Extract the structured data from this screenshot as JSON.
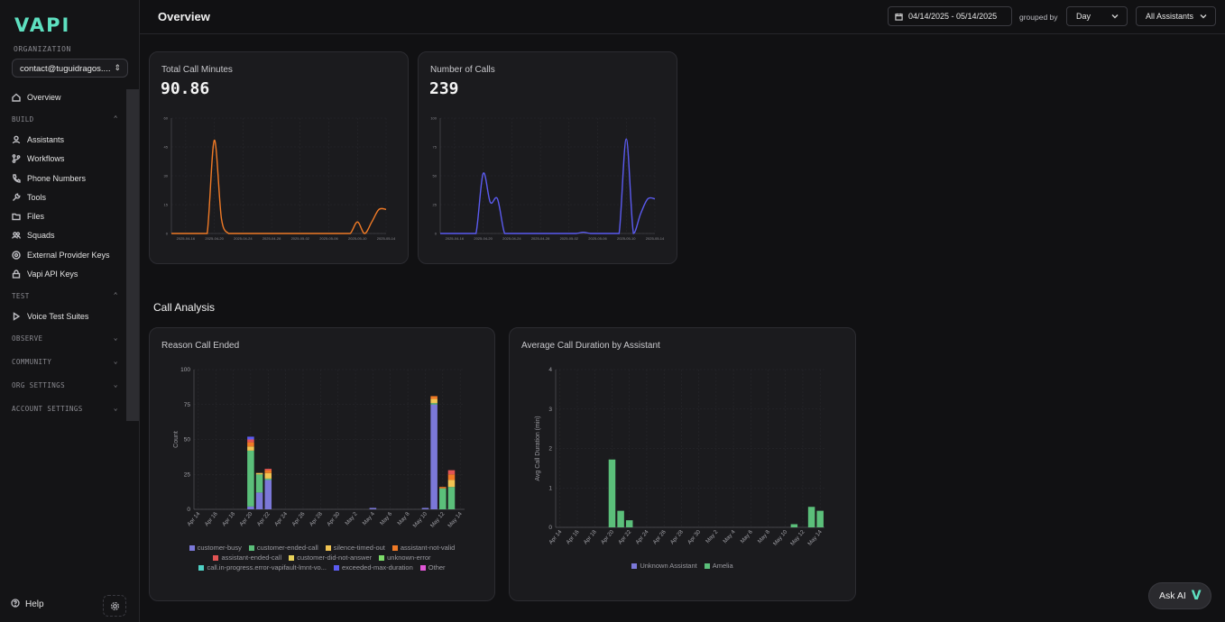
{
  "brand": {
    "logo": "VAPI",
    "color": "#5ee0c0"
  },
  "sidebar": {
    "org_label": "ORGANIZATION",
    "org_value": "contact@tuguidragos....",
    "overview": {
      "label": "Overview",
      "icon": "home-icon"
    },
    "build_label": "BUILD",
    "build_items": [
      {
        "label": "Assistants",
        "icon": "user-icon"
      },
      {
        "label": "Workflows",
        "icon": "git-branch-icon"
      },
      {
        "label": "Phone Numbers",
        "icon": "phone-icon"
      },
      {
        "label": "Tools",
        "icon": "wrench-icon"
      },
      {
        "label": "Files",
        "icon": "folder-icon"
      },
      {
        "label": "Squads",
        "icon": "users-icon"
      },
      {
        "label": "External Provider Keys",
        "icon": "key-circle-icon"
      },
      {
        "label": "Vapi API Keys",
        "icon": "lock-icon"
      }
    ],
    "test_label": "TEST",
    "test_items": [
      {
        "label": "Voice Test Suites",
        "icon": "play-icon"
      }
    ],
    "observe_label": "OBSERVE",
    "community_label": "COMMUNITY",
    "org_settings_label": "ORG SETTINGS",
    "account_settings_label": "ACCOUNT SETTINGS",
    "help_label": "Help"
  },
  "header": {
    "title": "Overview",
    "date_range": "04/14/2025 - 05/14/2025",
    "grouped_by_label": "grouped by",
    "group_value": "Day",
    "assistant_filter": "All Assistants"
  },
  "cards": {
    "minutes": {
      "title": "Total Call Minutes",
      "value": "90.86"
    },
    "calls": {
      "title": "Number of Calls",
      "value": "239"
    }
  },
  "call_analysis_title": "Call Analysis",
  "chart_data": [
    {
      "type": "line",
      "title": "Total Call Minutes",
      "color": "#f07a26",
      "x_ticks": [
        "2025-04-16",
        "2025-04-20",
        "2025-04-24",
        "2025-04-28",
        "2025-05-02",
        "2025-05-06",
        "2025-05-10",
        "2025-05-14"
      ],
      "y_ticks": [
        "0",
        "15",
        "30",
        "45",
        "60"
      ],
      "ylim": [
        0,
        60
      ],
      "x": [
        "2025-04-14",
        "2025-04-15",
        "2025-04-16",
        "2025-04-17",
        "2025-04-18",
        "2025-04-19",
        "2025-04-20",
        "2025-04-21",
        "2025-04-22",
        "2025-04-23",
        "2025-04-24",
        "2025-04-25",
        "2025-04-26",
        "2025-04-27",
        "2025-04-28",
        "2025-04-29",
        "2025-04-30",
        "2025-05-01",
        "2025-05-02",
        "2025-05-03",
        "2025-05-04",
        "2025-05-05",
        "2025-05-06",
        "2025-05-07",
        "2025-05-08",
        "2025-05-09",
        "2025-05-10",
        "2025-05-11",
        "2025-05-12",
        "2025-05-13",
        "2025-05-14"
      ],
      "values": [
        0,
        0,
        0,
        0,
        0,
        0,
        48.5,
        7.5,
        0,
        0,
        0,
        0,
        0,
        0,
        0,
        0,
        0,
        0,
        0,
        0,
        0,
        0,
        0,
        0,
        0,
        0,
        6,
        0,
        6,
        12.5,
        12.5
      ]
    },
    {
      "type": "line",
      "title": "Number of Calls",
      "color": "#5b5bf0",
      "x_ticks": [
        "2025-04-16",
        "2025-04-20",
        "2025-04-24",
        "2025-04-28",
        "2025-05-02",
        "2025-05-06",
        "2025-05-10",
        "2025-05-14"
      ],
      "y_ticks": [
        "0",
        "25",
        "50",
        "75",
        "100"
      ],
      "ylim": [
        0,
        100
      ],
      "x": [
        "2025-04-14",
        "2025-04-15",
        "2025-04-16",
        "2025-04-17",
        "2025-04-18",
        "2025-04-19",
        "2025-04-20",
        "2025-04-21",
        "2025-04-22",
        "2025-04-23",
        "2025-04-24",
        "2025-04-25",
        "2025-04-26",
        "2025-04-27",
        "2025-04-28",
        "2025-04-29",
        "2025-04-30",
        "2025-05-01",
        "2025-05-02",
        "2025-05-03",
        "2025-05-04",
        "2025-05-05",
        "2025-05-06",
        "2025-05-07",
        "2025-05-08",
        "2025-05-09",
        "2025-05-10",
        "2025-05-11",
        "2025-05-12",
        "2025-05-13",
        "2025-05-14"
      ],
      "values": [
        0,
        0,
        0,
        0,
        0,
        0,
        52,
        27,
        30,
        0,
        0,
        0,
        0,
        0,
        0,
        0,
        0,
        0,
        0,
        0,
        1,
        0,
        0,
        0,
        0,
        0,
        82,
        0,
        17,
        30,
        30
      ]
    },
    {
      "type": "bar",
      "title": "Reason Call Ended",
      "ylabel": "Count",
      "ylim": [
        0,
        100
      ],
      "y_ticks": [
        "0",
        "25",
        "50",
        "75",
        "100"
      ],
      "x_ticks": [
        "Apr 14",
        "Apr 16",
        "Apr 18",
        "Apr 20",
        "Apr 22",
        "Apr 24",
        "Apr 26",
        "Apr 28",
        "Apr 30",
        "May 2",
        "May 4",
        "May 6",
        "May 8",
        "May 10",
        "May 12",
        "May 14"
      ],
      "categories": [
        "Apr 14",
        "Apr 15",
        "Apr 16",
        "Apr 17",
        "Apr 18",
        "Apr 19",
        "Apr 20",
        "Apr 21",
        "Apr 22",
        "Apr 23",
        "Apr 24",
        "Apr 25",
        "Apr 26",
        "Apr 27",
        "Apr 28",
        "Apr 29",
        "Apr 30",
        "May 1",
        "May 2",
        "May 3",
        "May 4",
        "May 5",
        "May 6",
        "May 7",
        "May 8",
        "May 9",
        "May 10",
        "May 11",
        "May 12",
        "May 13",
        "May 14"
      ],
      "series": [
        {
          "name": "customer-busy",
          "color": "#7b78d8",
          "values": [
            0,
            0,
            0,
            0,
            0,
            0,
            2,
            12,
            21,
            0,
            0,
            0,
            0,
            0,
            0,
            0,
            0,
            0,
            0,
            0,
            1,
            0,
            0,
            0,
            0,
            0,
            1,
            75,
            0,
            0,
            0
          ]
        },
        {
          "name": "customer-ended-call",
          "color": "#5bbf7a",
          "values": [
            0,
            0,
            0,
            0,
            0,
            0,
            40,
            13,
            1,
            0,
            0,
            0,
            0,
            0,
            0,
            0,
            0,
            0,
            0,
            0,
            0,
            0,
            0,
            0,
            0,
            0,
            0,
            1,
            15,
            16,
            0
          ]
        },
        {
          "name": "silence-timed-out",
          "color": "#f1c453",
          "values": [
            0,
            0,
            0,
            0,
            0,
            0,
            3,
            1,
            4,
            0,
            0,
            0,
            0,
            0,
            0,
            0,
            0,
            0,
            0,
            0,
            0,
            0,
            0,
            0,
            0,
            0,
            0,
            3,
            0,
            5,
            0
          ]
        },
        {
          "name": "assistant-not-valid",
          "color": "#f07a26",
          "values": [
            0,
            0,
            0,
            0,
            0,
            0,
            3,
            0,
            2,
            0,
            0,
            0,
            0,
            0,
            0,
            0,
            0,
            0,
            0,
            0,
            0,
            0,
            0,
            0,
            0,
            0,
            0,
            2,
            1,
            4,
            0
          ]
        },
        {
          "name": "assistant-ended-call",
          "color": "#e25454",
          "values": [
            0,
            0,
            0,
            0,
            0,
            0,
            2,
            0,
            1,
            0,
            0,
            0,
            0,
            0,
            0,
            0,
            0,
            0,
            0,
            0,
            0,
            0,
            0,
            0,
            0,
            0,
            0,
            0,
            0,
            3,
            0
          ]
        },
        {
          "name": "customer-did-not-answer",
          "color": "#e8d25a",
          "values": [
            0,
            0,
            0,
            0,
            0,
            0,
            0,
            0,
            0,
            0,
            0,
            0,
            0,
            0,
            0,
            0,
            0,
            0,
            0,
            0,
            0,
            0,
            0,
            0,
            0,
            0,
            0,
            0,
            0,
            0,
            0
          ]
        },
        {
          "name": "unknown-error",
          "color": "#7ddc6a",
          "values": [
            0,
            0,
            0,
            0,
            0,
            0,
            0,
            0,
            0,
            0,
            0,
            0,
            0,
            0,
            0,
            0,
            0,
            0,
            0,
            0,
            0,
            0,
            0,
            0,
            0,
            0,
            0,
            0,
            0,
            0,
            0
          ]
        },
        {
          "name": "call.in-progress.error-vapifault-lmnt-vo...",
          "color": "#4fd1c5",
          "values": [
            0,
            0,
            0,
            0,
            0,
            0,
            0,
            0,
            0,
            0,
            0,
            0,
            0,
            0,
            0,
            0,
            0,
            0,
            0,
            0,
            0,
            0,
            0,
            0,
            0,
            0,
            0,
            0,
            0,
            0,
            0
          ]
        },
        {
          "name": "exceeded-max-duration",
          "color": "#5b5bf0",
          "values": [
            0,
            0,
            0,
            0,
            0,
            0,
            2,
            0,
            0,
            0,
            0,
            0,
            0,
            0,
            0,
            0,
            0,
            0,
            0,
            0,
            0,
            0,
            0,
            0,
            0,
            0,
            0,
            0,
            0,
            0,
            0
          ]
        },
        {
          "name": "Other",
          "color": "#e056d6",
          "values": [
            0,
            0,
            0,
            0,
            0,
            0,
            0,
            0,
            0,
            0,
            0,
            0,
            0,
            0,
            0,
            0,
            0,
            0,
            0,
            0,
            0,
            0,
            0,
            0,
            0,
            0,
            0,
            0,
            0,
            0,
            0
          ]
        }
      ]
    },
    {
      "type": "bar",
      "title": "Average Call Duration by Assistant",
      "ylabel": "Avg Call Duration (min)",
      "ylim": [
        0,
        4
      ],
      "y_ticks": [
        "0",
        "1",
        "2",
        "3",
        "4"
      ],
      "x_ticks": [
        "Apr 14",
        "Apr 16",
        "Apr 18",
        "Apr 20",
        "Apr 22",
        "Apr 24",
        "Apr 26",
        "Apr 28",
        "Apr 30",
        "May 2",
        "May 4",
        "May 6",
        "May 8",
        "May 10",
        "May 12",
        "May 14"
      ],
      "categories": [
        "Apr 14",
        "Apr 15",
        "Apr 16",
        "Apr 17",
        "Apr 18",
        "Apr 19",
        "Apr 20",
        "Apr 21",
        "Apr 22",
        "Apr 23",
        "Apr 24",
        "Apr 25",
        "Apr 26",
        "Apr 27",
        "Apr 28",
        "Apr 29",
        "Apr 30",
        "May 1",
        "May 2",
        "May 3",
        "May 4",
        "May 5",
        "May 6",
        "May 7",
        "May 8",
        "May 9",
        "May 10",
        "May 11",
        "May 12",
        "May 13",
        "May 14"
      ],
      "series": [
        {
          "name": "Unknown Assistant",
          "color": "#7b78d8",
          "values": [
            0,
            0,
            0,
            0,
            0,
            0,
            0,
            0,
            0,
            0,
            0,
            0,
            0,
            0,
            0,
            0,
            0,
            0,
            0,
            0,
            0,
            0,
            0,
            0,
            0,
            0,
            0,
            0,
            0,
            0,
            0
          ]
        },
        {
          "name": "Amelia",
          "color": "#5bbf7a",
          "values": [
            0,
            0,
            0,
            0,
            0,
            0,
            1.72,
            0.42,
            0.18,
            0,
            0,
            0,
            0,
            0,
            0,
            0,
            0,
            0,
            0,
            0,
            0,
            0,
            0,
            0,
            0,
            0,
            0,
            0.08,
            0,
            0.52,
            0.42
          ]
        }
      ]
    }
  ],
  "ask_ai": {
    "label": "Ask AI",
    "icon": "vapi-v-icon"
  }
}
